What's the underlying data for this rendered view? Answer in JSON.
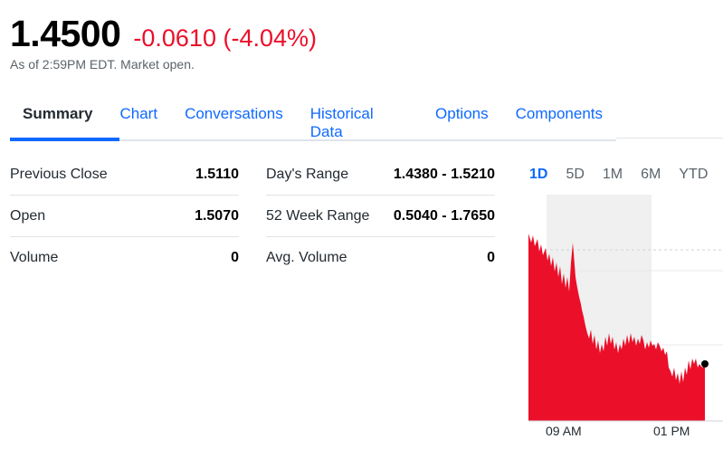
{
  "quote": {
    "price": "1.4500",
    "change": "-0.0610 (-4.04%)",
    "as_of": "As of 2:59PM EDT. Market open."
  },
  "tabs": [
    "Summary",
    "Chart",
    "Conversations",
    "Historical Data",
    "Options",
    "Components"
  ],
  "active_tab": "Summary",
  "stats": {
    "col1": [
      {
        "label": "Previous Close",
        "value": "1.5110"
      },
      {
        "label": "Open",
        "value": "1.5070"
      },
      {
        "label": "Volume",
        "value": "0"
      }
    ],
    "col2": [
      {
        "label": "Day's Range",
        "value": "1.4380 - 1.5210"
      },
      {
        "label": "52 Week Range",
        "value": "0.5040 - 1.7650"
      },
      {
        "label": "Avg. Volume",
        "value": "0"
      }
    ]
  },
  "ranges": [
    "1D",
    "5D",
    "1M",
    "6M",
    "YTD"
  ],
  "active_range": "1D",
  "chart": {
    "x_ticks": [
      "09 AM",
      "01 PM"
    ],
    "colors": {
      "fill": "#eb0f29",
      "shade": "#f0f0f0",
      "prev_close_line": "#cfd3d8"
    }
  }
}
